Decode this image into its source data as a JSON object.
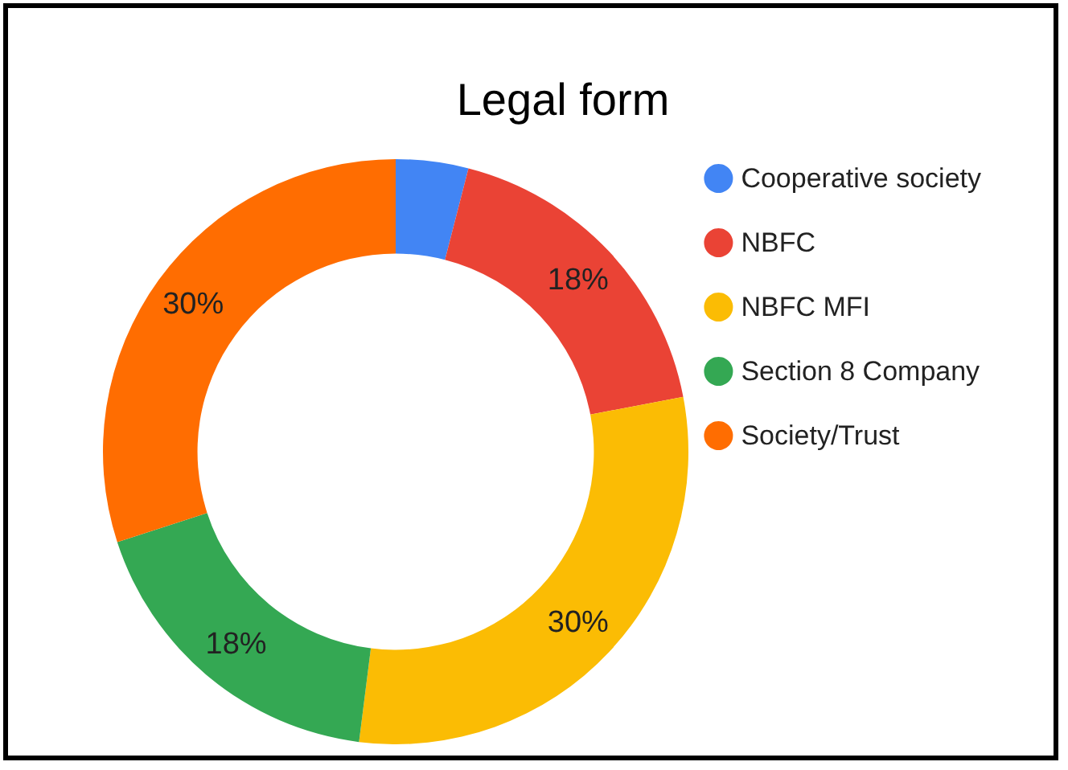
{
  "chart_data": {
    "type": "donut",
    "title": "Legal form",
    "categories": [
      "Cooperative society",
      "NBFC",
      "NBFC MFI",
      "Section 8 Company",
      "Society/Trust"
    ],
    "values": [
      4,
      18,
      30,
      18,
      30
    ],
    "colors": [
      "#4285f4",
      "#ea4335",
      "#fbbc04",
      "#34a853",
      "#ff6d01"
    ],
    "value_labels": [
      null,
      "18%",
      "30%",
      "18%",
      "30%"
    ],
    "legend": "right"
  }
}
